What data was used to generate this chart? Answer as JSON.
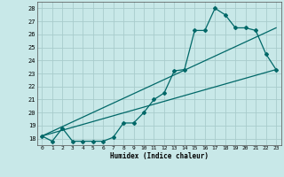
{
  "xlabel": "Humidex (Indice chaleur)",
  "background_color": "#c8e8e8",
  "grid_color": "#a8cccc",
  "line_color": "#006868",
  "xlim": [
    -0.5,
    23.5
  ],
  "ylim": [
    17.5,
    28.5
  ],
  "yticks": [
    18,
    19,
    20,
    21,
    22,
    23,
    24,
    25,
    26,
    27,
    28
  ],
  "xticks": [
    0,
    1,
    2,
    3,
    4,
    5,
    6,
    7,
    8,
    9,
    10,
    11,
    12,
    13,
    14,
    15,
    16,
    17,
    18,
    19,
    20,
    21,
    22,
    23
  ],
  "line1_x": [
    0,
    1,
    2,
    3,
    4,
    5,
    6,
    7,
    8,
    9,
    10,
    11,
    12,
    13,
    14,
    15,
    16,
    17,
    18,
    19,
    20,
    21,
    22,
    23
  ],
  "line1_y": [
    18.2,
    17.8,
    18.8,
    17.8,
    17.8,
    17.8,
    17.8,
    18.1,
    19.2,
    19.2,
    20.0,
    21.0,
    21.5,
    23.2,
    23.3,
    26.3,
    26.3,
    28.0,
    27.5,
    26.5,
    26.5,
    26.3,
    24.5,
    23.3
  ],
  "line2_x": [
    0,
    23
  ],
  "line2_y": [
    18.2,
    23.3
  ],
  "line3_x": [
    0,
    23
  ],
  "line3_y": [
    18.2,
    26.5
  ]
}
